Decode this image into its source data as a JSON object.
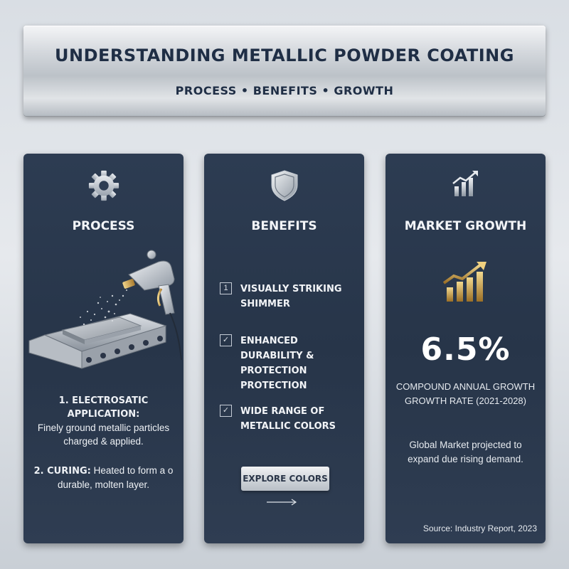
{
  "banner": {
    "title": "UNDERSTANDING METALLIC POWDER COATING",
    "subtitle": "PROCESS • BENEFITS • GROWTH"
  },
  "process": {
    "title": "PROCESS",
    "icon": "gear-icon",
    "illustration": "spray-gun-conveyor",
    "step1_heading": "1. ELECTROSATIC APPLICATION:",
    "step1_text": "Finely ground metallic particles charged & applied.",
    "step2_heading": "2. CURING:",
    "step2_text": "Heated to form a o durable, molten layer."
  },
  "benefits": {
    "title": "BENEFITS",
    "icon": "shield-icon",
    "items": [
      {
        "marker": "1",
        "text": "VISUALLY STRIKING SHIMMER"
      },
      {
        "marker": "✓",
        "text": "ENHANCED DURABILITY & PROTECTION PROTECTION"
      },
      {
        "marker": "✓",
        "text": "WIDE RANGE OF METALLIC COLORS"
      }
    ],
    "button_label": "EXPLORE COLORS"
  },
  "market": {
    "title": "MARKET GROWTH",
    "icon": "bar-chart-icon",
    "stat_value": "6.5%",
    "stat_label": "COMPOUND ANNUAL GROWTH GROWTH RATE (2021-2028)",
    "description": "Global Market projected to expand due rising demand.",
    "source": "Source: Industry Report, 2023"
  },
  "colors": {
    "panel": "#2b3a50",
    "text_dark": "#1f2e45",
    "gold": "#c9a24a"
  }
}
